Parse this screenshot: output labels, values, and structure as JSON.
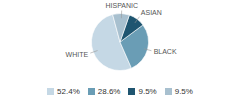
{
  "chart_data": {
    "type": "pie",
    "categories": [
      "WHITE",
      "BLACK",
      "ASIAN",
      "HISPANIC"
    ],
    "values": [
      52.4,
      28.6,
      9.5,
      9.5
    ],
    "value_labels": [
      "52.4%",
      "28.6%",
      "9.5%",
      "9.5%"
    ],
    "colors": [
      "#c5d8e5",
      "#6a9db5",
      "#1f5570",
      "#a8c0cf"
    ],
    "legend": "bottom"
  }
}
